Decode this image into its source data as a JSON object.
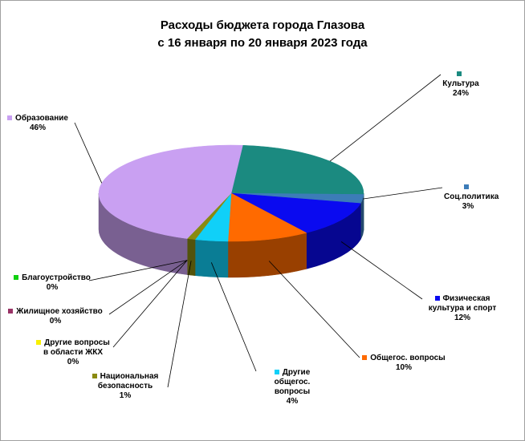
{
  "chart_data": {
    "type": "pie3d",
    "title": "Расходы бюджета города Глазова",
    "subtitle": "с 16 января по 20 января 2023 года",
    "categories": [
      "Культура",
      "Соц.политика",
      "Физическая культура и спорт",
      "Общегос. вопросы",
      "Другие общегос. вопросы",
      "Национальная безопасность",
      "Другие вопросы в области ЖКХ",
      "Жилищное хозяйство",
      "Благоустройство",
      "Образование"
    ],
    "values": [
      24,
      3,
      12,
      10,
      4,
      1,
      0,
      0,
      0,
      46
    ],
    "value_labels": [
      "24%",
      "3%",
      "12%",
      "10%",
      "4%",
      "1%",
      "0%",
      "0%",
      "0%",
      "46%"
    ],
    "colors": [
      "#1b8a80",
      "#3c7cb8",
      "#0a0af0",
      "#ff6a00",
      "#10d0f8",
      "#8a8a10",
      "#f8f000",
      "#993366",
      "#10d010",
      "#c9a0f2"
    ]
  }
}
